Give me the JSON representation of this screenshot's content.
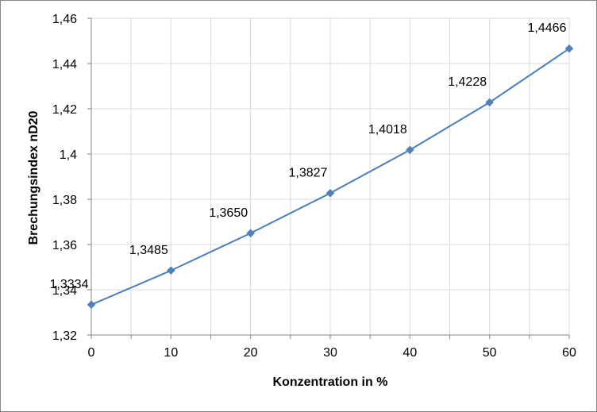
{
  "chart_data": {
    "type": "line",
    "title": "",
    "xlabel": "Konzentration in %",
    "ylabel": "Brechungsindex nD20",
    "xlim": [
      0,
      60
    ],
    "ylim": [
      1.32,
      1.46
    ],
    "x_ticks": [
      0,
      10,
      20,
      30,
      40,
      50,
      60
    ],
    "x_tick_labels": [
      "0",
      "10",
      "20",
      "30",
      "40",
      "50",
      "60"
    ],
    "y_ticks": [
      1.32,
      1.34,
      1.36,
      1.38,
      1.4,
      1.42,
      1.44,
      1.46
    ],
    "y_tick_labels": [
      "1,32",
      "1,34",
      "1,36",
      "1,38",
      "1,4",
      "1,42",
      "1,44",
      "1,46"
    ],
    "x_minor_step": 5,
    "grid": true,
    "legend": "none",
    "series": [
      {
        "x": [
          0,
          10,
          20,
          30,
          40,
          50,
          60
        ],
        "values": [
          1.3334,
          1.3485,
          1.365,
          1.3827,
          1.4018,
          1.4228,
          1.4466
        ],
        "data_labels": [
          "1,3334",
          "1,3485",
          "1,3650",
          "1,3827",
          "1,4018",
          "1,4228",
          "1,4466"
        ],
        "marker": "diamond",
        "line_color": "#4A7EBB",
        "marker_color": "#4F81BD"
      }
    ],
    "colors": {
      "grid": "#D9D9D9",
      "axis": "#868686",
      "border": "#868686"
    }
  }
}
